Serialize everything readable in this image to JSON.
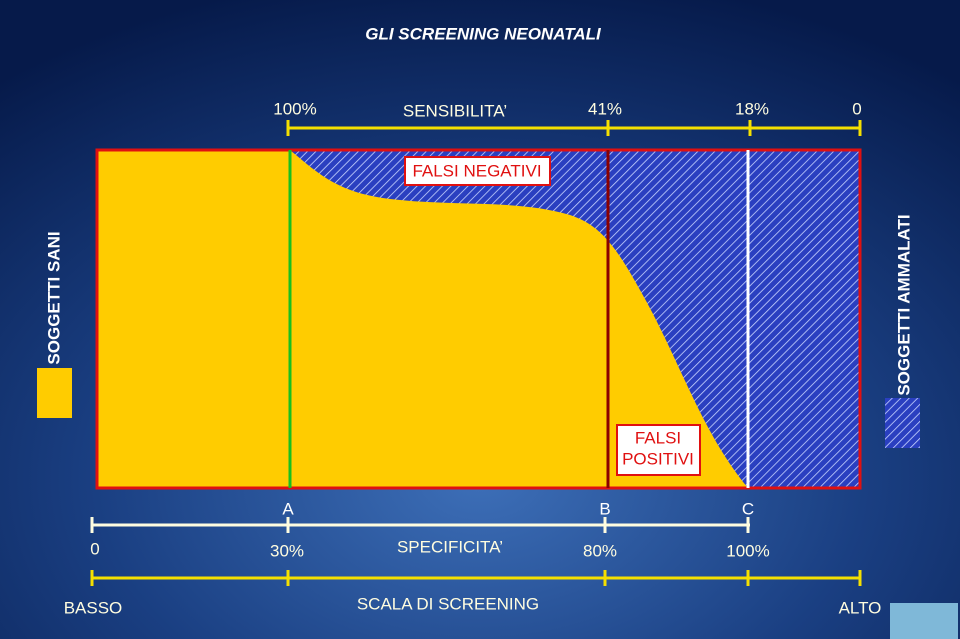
{
  "header": {
    "title": "GLI SCREENING NEONATALI"
  },
  "sensitivity_scale": {
    "label": "SENSIBILITA’",
    "ticks": [
      "100%",
      "41%",
      "18%",
      "0"
    ]
  },
  "regions": {
    "false_negatives": "FALSI NEGATIVI",
    "false_positives": [
      "FALSI",
      "POSITIVI"
    ]
  },
  "legend": {
    "healthy": "SOGGETTI SANI",
    "sick": "SOGGETTI AMMALATI"
  },
  "thresholds": [
    "A",
    "B",
    "C"
  ],
  "specificity_scale": {
    "label": "SPECIFICITA’",
    "ticks": [
      "0",
      "30%",
      "80%",
      "100%"
    ]
  },
  "screening_scale": {
    "label": "SCALA DI SCREENING",
    "low": "BASSO",
    "high": "ALTO"
  }
}
